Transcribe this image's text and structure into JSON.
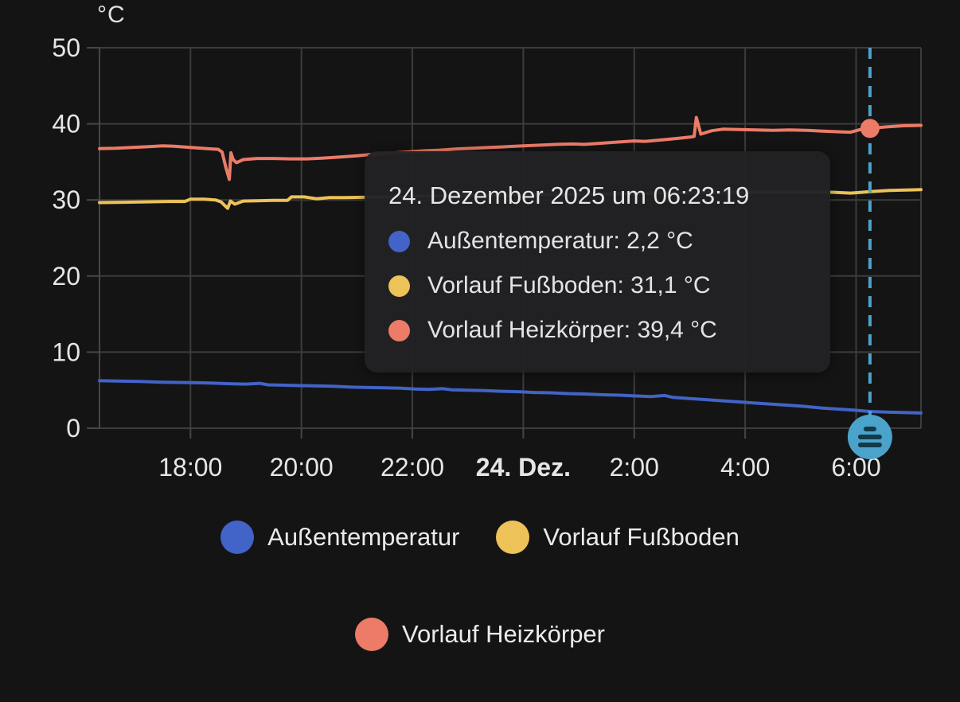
{
  "chart_data": {
    "type": "line",
    "title": "",
    "unit_label": "°C",
    "x_range": [
      -7.64,
      7.17
    ],
    "y_range": [
      0,
      50
    ],
    "grid": true,
    "grid_color": "#3c3c3c",
    "axis_color": "#464646",
    "y_ticks": [
      0,
      10,
      20,
      30,
      40,
      50
    ],
    "x_ticks": [
      {
        "t": -6,
        "label": "18:00",
        "bold": false
      },
      {
        "t": -4,
        "label": "20:00",
        "bold": false
      },
      {
        "t": -2,
        "label": "22:00",
        "bold": false
      },
      {
        "t": 0,
        "label": "24. Dez.",
        "bold": true
      },
      {
        "t": 2,
        "label": "2:00",
        "bold": false
      },
      {
        "t": 4,
        "label": "4:00",
        "bold": false
      },
      {
        "t": 6,
        "label": "6:00",
        "bold": false
      }
    ],
    "cursor": {
      "t": 6.25,
      "time_label": "06:23:19",
      "color": "#4ba3cc",
      "icon": "list-icon",
      "icon_color": "#123a4a",
      "highlight_series": "vorlauf-heizkoerper",
      "highlight_value": 39.4
    },
    "series": [
      {
        "id": "vorlauf-heizkoerper",
        "name": "Vorlauf Heizkörper",
        "color": "#ec7b68",
        "points": [
          [
            -7.64,
            36.75
          ],
          [
            -7.35,
            36.8
          ],
          [
            -7.05,
            36.9
          ],
          [
            -6.75,
            37.0
          ],
          [
            -6.5,
            37.1
          ],
          [
            -6.3,
            37.05
          ],
          [
            -6.1,
            36.95
          ],
          [
            -5.9,
            36.85
          ],
          [
            -5.7,
            36.75
          ],
          [
            -5.5,
            36.65
          ],
          [
            -5.43,
            36.3
          ],
          [
            -5.36,
            34.2
          ],
          [
            -5.3,
            32.7
          ],
          [
            -5.27,
            36.2
          ],
          [
            -5.23,
            35.3
          ],
          [
            -5.17,
            34.9
          ],
          [
            -5.05,
            35.3
          ],
          [
            -4.8,
            35.45
          ],
          [
            -4.5,
            35.45
          ],
          [
            -4.2,
            35.4
          ],
          [
            -3.9,
            35.4
          ],
          [
            -3.6,
            35.5
          ],
          [
            -3.3,
            35.65
          ],
          [
            -3.0,
            35.8
          ],
          [
            -2.7,
            36.0
          ],
          [
            -2.4,
            36.15
          ],
          [
            -2.1,
            36.3
          ],
          [
            -1.8,
            36.45
          ],
          [
            -1.5,
            36.55
          ],
          [
            -1.2,
            36.7
          ],
          [
            -0.9,
            36.8
          ],
          [
            -0.6,
            36.9
          ],
          [
            -0.3,
            37.0
          ],
          [
            0.0,
            37.1
          ],
          [
            0.3,
            37.2
          ],
          [
            0.6,
            37.3
          ],
          [
            0.9,
            37.35
          ],
          [
            1.1,
            37.3
          ],
          [
            1.4,
            37.45
          ],
          [
            1.7,
            37.6
          ],
          [
            2.0,
            37.75
          ],
          [
            2.2,
            37.7
          ],
          [
            2.5,
            37.9
          ],
          [
            2.8,
            38.1
          ],
          [
            3.0,
            38.25
          ],
          [
            3.08,
            38.35
          ],
          [
            3.12,
            40.85
          ],
          [
            3.2,
            38.65
          ],
          [
            3.4,
            39.1
          ],
          [
            3.6,
            39.3
          ],
          [
            3.9,
            39.25
          ],
          [
            4.2,
            39.2
          ],
          [
            4.5,
            39.15
          ],
          [
            4.8,
            39.2
          ],
          [
            5.1,
            39.15
          ],
          [
            5.4,
            39.05
          ],
          [
            5.7,
            38.95
          ],
          [
            5.9,
            38.9
          ],
          [
            6.1,
            39.3
          ],
          [
            6.25,
            39.4
          ],
          [
            6.55,
            39.6
          ],
          [
            6.85,
            39.75
          ],
          [
            7.17,
            39.8
          ]
        ]
      },
      {
        "id": "vorlauf-fussboden",
        "name": "Vorlauf Fußboden",
        "color": "#ecc259",
        "points": [
          [
            -7.64,
            29.65
          ],
          [
            -7.2,
            29.7
          ],
          [
            -6.8,
            29.75
          ],
          [
            -6.4,
            29.8
          ],
          [
            -6.1,
            29.8
          ],
          [
            -6.0,
            30.1
          ],
          [
            -5.75,
            30.1
          ],
          [
            -5.55,
            30.0
          ],
          [
            -5.45,
            29.75
          ],
          [
            -5.33,
            28.9
          ],
          [
            -5.28,
            29.85
          ],
          [
            -5.2,
            29.45
          ],
          [
            -5.05,
            29.85
          ],
          [
            -4.8,
            29.9
          ],
          [
            -4.5,
            29.95
          ],
          [
            -4.25,
            29.95
          ],
          [
            -4.18,
            30.4
          ],
          [
            -3.95,
            30.4
          ],
          [
            -3.72,
            30.15
          ],
          [
            -3.5,
            30.3
          ],
          [
            -3.2,
            30.3
          ],
          [
            -2.9,
            30.35
          ],
          [
            -2.5,
            30.4
          ],
          [
            -2.1,
            30.45
          ],
          [
            -1.7,
            30.5
          ],
          [
            -1.3,
            30.55
          ],
          [
            -0.9,
            30.6
          ],
          [
            -0.5,
            30.6
          ],
          [
            0.0,
            30.65
          ],
          [
            0.5,
            30.7
          ],
          [
            1.0,
            30.75
          ],
          [
            1.5,
            30.8
          ],
          [
            2.0,
            30.85
          ],
          [
            2.5,
            30.9
          ],
          [
            3.0,
            30.95
          ],
          [
            3.5,
            31.0
          ],
          [
            4.0,
            31.0
          ],
          [
            4.5,
            31.05
          ],
          [
            4.9,
            31.0
          ],
          [
            5.3,
            31.05
          ],
          [
            5.6,
            31.0
          ],
          [
            5.9,
            30.9
          ],
          [
            6.1,
            31.0
          ],
          [
            6.25,
            31.1
          ],
          [
            6.6,
            31.25
          ],
          [
            6.9,
            31.3
          ],
          [
            7.17,
            31.35
          ]
        ]
      },
      {
        "id": "aussentemperatur",
        "name": "Außentemperatur",
        "color": "#4263c7",
        "points": [
          [
            -7.64,
            6.25
          ],
          [
            -7.3,
            6.2
          ],
          [
            -6.9,
            6.15
          ],
          [
            -6.5,
            6.05
          ],
          [
            -6.1,
            6.0
          ],
          [
            -5.7,
            5.95
          ],
          [
            -5.3,
            5.85
          ],
          [
            -5.0,
            5.8
          ],
          [
            -4.75,
            5.9
          ],
          [
            -4.6,
            5.7
          ],
          [
            -4.3,
            5.65
          ],
          [
            -4.0,
            5.6
          ],
          [
            -3.7,
            5.55
          ],
          [
            -3.4,
            5.5
          ],
          [
            -3.1,
            5.4
          ],
          [
            -2.8,
            5.35
          ],
          [
            -2.5,
            5.3
          ],
          [
            -2.2,
            5.25
          ],
          [
            -1.95,
            5.15
          ],
          [
            -1.7,
            5.1
          ],
          [
            -1.45,
            5.2
          ],
          [
            -1.3,
            5.05
          ],
          [
            -1.0,
            5.0
          ],
          [
            -0.7,
            4.95
          ],
          [
            -0.4,
            4.85
          ],
          [
            -0.1,
            4.8
          ],
          [
            0.2,
            4.7
          ],
          [
            0.5,
            4.65
          ],
          [
            0.8,
            4.55
          ],
          [
            1.1,
            4.5
          ],
          [
            1.4,
            4.4
          ],
          [
            1.7,
            4.35
          ],
          [
            2.0,
            4.25
          ],
          [
            2.3,
            4.15
          ],
          [
            2.55,
            4.3
          ],
          [
            2.7,
            4.05
          ],
          [
            3.0,
            3.9
          ],
          [
            3.3,
            3.75
          ],
          [
            3.6,
            3.6
          ],
          [
            3.9,
            3.45
          ],
          [
            4.2,
            3.3
          ],
          [
            4.5,
            3.15
          ],
          [
            4.8,
            3.0
          ],
          [
            5.1,
            2.85
          ],
          [
            5.4,
            2.65
          ],
          [
            5.7,
            2.5
          ],
          [
            6.0,
            2.35
          ],
          [
            6.25,
            2.2
          ],
          [
            6.6,
            2.1
          ],
          [
            6.9,
            2.05
          ],
          [
            7.17,
            2.0
          ]
        ]
      }
    ]
  },
  "tooltip": {
    "title": "24. Dezember 2025 um 06:23:19",
    "rows": [
      {
        "series": "aussentemperatur",
        "color": "#4263c7",
        "text": "Außentemperatur: 2,2 °C"
      },
      {
        "series": "vorlauf-fussboden",
        "color": "#ecc259",
        "text": "Vorlauf Fußboden: 31,1 °C"
      },
      {
        "series": "vorlauf-heizkoerper",
        "color": "#ec7b68",
        "text": "Vorlauf Heizkörper: 39,4 °C"
      }
    ]
  },
  "legend": {
    "items": [
      {
        "id": "aussentemperatur",
        "label": "Außentemperatur",
        "color": "#4263c7"
      },
      {
        "id": "vorlauf-fussboden",
        "label": "Vorlauf Fußboden",
        "color": "#ecc259"
      },
      {
        "id": "vorlauf-heizkoerper",
        "label": "Vorlauf Heizkörper",
        "color": "#ec7b68"
      }
    ]
  }
}
